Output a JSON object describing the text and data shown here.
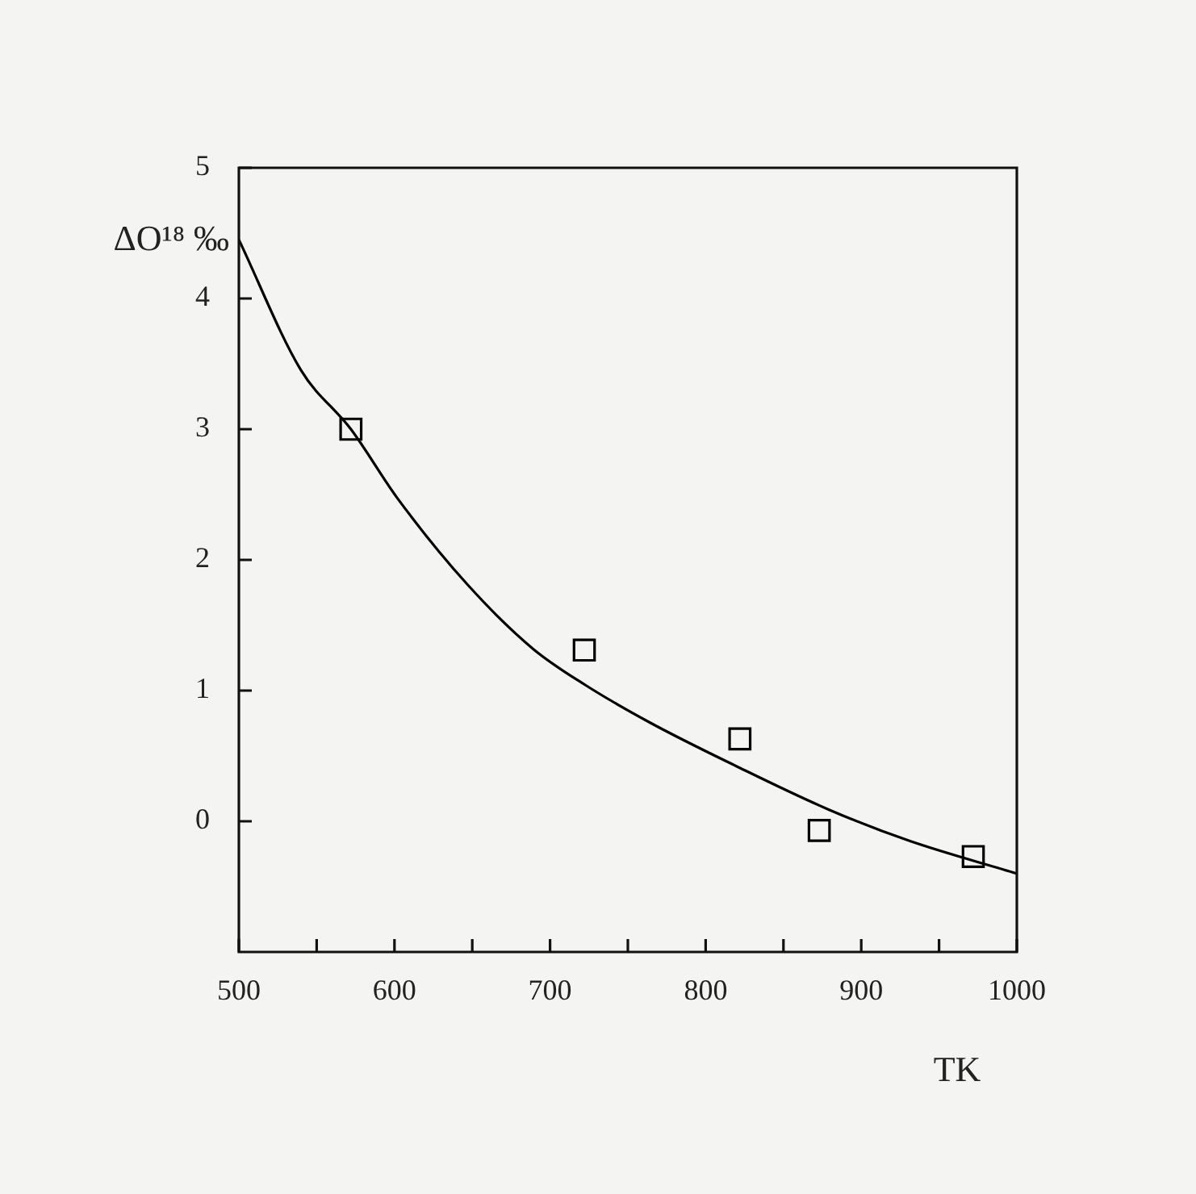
{
  "chart_data": {
    "type": "scatter",
    "xlabel": "TK",
    "ylabel": "ΔO¹⁸ ‰",
    "xlim": [
      500,
      1000
    ],
    "xticks": [
      500,
      {
        "value": 550,
        "label": null
      },
      600,
      {
        "value": 650,
        "label": null
      },
      700,
      {
        "value": 750,
        "label": null
      },
      800,
      {
        "value": 850,
        "label": null
      },
      900,
      {
        "value": 950,
        "label": null
      },
      1000
    ],
    "ylim": [
      -1,
      5
    ],
    "yticks": [
      0,
      1,
      2,
      3,
      4,
      5
    ],
    "grid": false,
    "legend": false,
    "series": [
      {
        "type": "scatter",
        "color": "#000000",
        "marker": "square",
        "x": [
          572,
          722,
          822,
          873,
          972
        ],
        "values": [
          3.0,
          1.31,
          0.63,
          -0.07,
          -0.27
        ]
      },
      {
        "type": "line",
        "color": "#000000",
        "marker": "none",
        "line_style": "solid",
        "x": [
          500,
          540,
          572,
          602,
          647,
          689,
          723,
          765,
          820,
          879,
          931,
          1000
        ],
        "values": [
          4.45,
          3.45,
          3.0,
          2.47,
          1.81,
          1.32,
          1.04,
          0.75,
          0.42,
          0.09,
          -0.15,
          -0.4
        ]
      }
    ]
  }
}
